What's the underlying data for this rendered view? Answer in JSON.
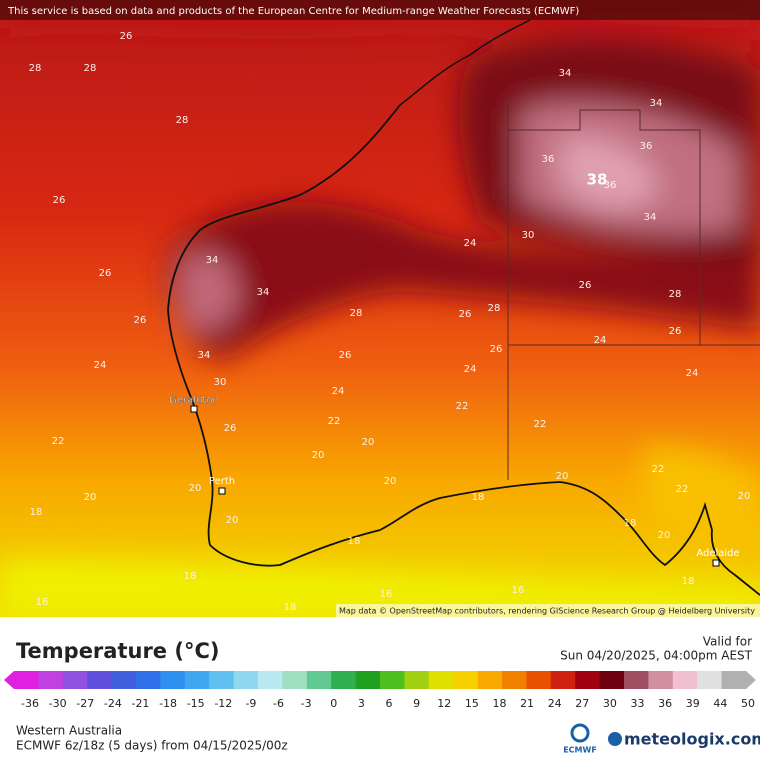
{
  "banner": "This service is based on data and products of the European Centre for Medium-range Weather Forecasts (ECMWF)",
  "map": {
    "cities": [
      "Geraldton",
      "Perth",
      "Adelaide"
    ],
    "peak_label": "38",
    "contour_labels": [
      28,
      26,
      28,
      28,
      26,
      26,
      26,
      24,
      22,
      20,
      18,
      18,
      16,
      18,
      16,
      16,
      18,
      18,
      20,
      20,
      20,
      22,
      22,
      22,
      24,
      24,
      24,
      24,
      26,
      26,
      26,
      26,
      28,
      28,
      28,
      30,
      34,
      34,
      34,
      34,
      34,
      36,
      36,
      36,
      34,
      30,
      22,
      22,
      20,
      20,
      20,
      20,
      20,
      18,
      18,
      26,
      24,
      26
    ],
    "attribution": "Map data © OpenStreetMap contributors, rendering GIScience Research Group @ Heidelberg University"
  },
  "legend": {
    "title": "Temperature (°C)",
    "valid_label": "Valid for",
    "valid_time": "Sun 04/20/2025, 04:00pm AEST",
    "ticks": [
      -36,
      -30,
      -27,
      -24,
      -21,
      -18,
      -15,
      -12,
      -9,
      -6,
      -3,
      0,
      3,
      6,
      9,
      12,
      15,
      18,
      21,
      24,
      27,
      30,
      33,
      36,
      39,
      44,
      50
    ],
    "colors": [
      "#e020e0",
      "#c040e0",
      "#9050e0",
      "#6050e0",
      "#4060e0",
      "#3070e8",
      "#3090f0",
      "#40a8f0",
      "#60c0f0",
      "#90d8f0",
      "#b8e8f0",
      "#a0e0c0",
      "#60c890",
      "#30b050",
      "#20a020",
      "#50c020",
      "#a0d010",
      "#e0e000",
      "#f8d000",
      "#f8a800",
      "#f08000",
      "#e85000",
      "#d02010",
      "#a00010",
      "#700010",
      "#a05060",
      "#d090a0",
      "#f0c0d0",
      "#e0e0e0",
      "#b0b0b0"
    ]
  },
  "footer": {
    "region": "Western Australia",
    "model": "ECMWF 6z/18z (5 days) from 04/15/2025/00z",
    "logo_ecmwf": "ECMWF",
    "logo_brand": "meteologix.com"
  }
}
